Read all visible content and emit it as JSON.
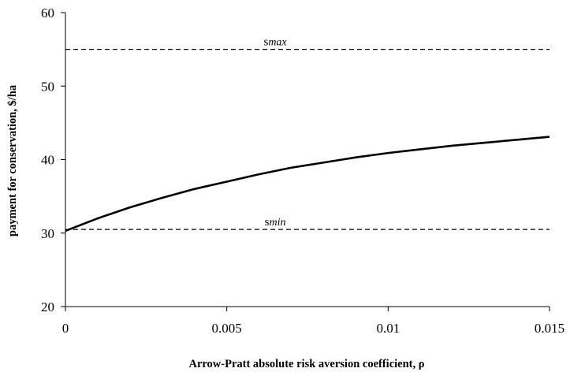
{
  "chart_data": {
    "type": "line",
    "title": "",
    "xlabel": "Arrow-Pratt absolute risk aversion coefficient, ρ",
    "ylabel": "payment for conservation, $/ha",
    "xlim": [
      0,
      0.015
    ],
    "ylim": [
      20,
      60
    ],
    "xticks": [
      0,
      0.005,
      0.01,
      0.015
    ],
    "xtick_labels": [
      "0",
      "0.005",
      "0.01",
      "0.015"
    ],
    "yticks": [
      20,
      30,
      40,
      50,
      60
    ],
    "ytick_labels": [
      "20",
      "30",
      "40",
      "50",
      "60"
    ],
    "grid": false,
    "legend": "none",
    "series": [
      {
        "x": [
          0,
          0.001,
          0.002,
          0.003,
          0.004,
          0.005,
          0.006,
          0.007,
          0.008,
          0.009,
          0.01,
          0.011,
          0.012,
          0.013,
          0.014,
          0.015
        ],
        "values": [
          30.3,
          32.0,
          33.5,
          34.8,
          36.0,
          37.0,
          38.0,
          38.9,
          39.6,
          40.3,
          40.9,
          41.4,
          41.9,
          42.3,
          42.7,
          43.1
        ],
        "color": "#000000",
        "style": "solid"
      }
    ],
    "reference_lines": [
      {
        "y": 55,
        "label_main": "s",
        "label_sub": "max",
        "style": "dashed",
        "label_x": 0.0065
      },
      {
        "y": 30.5,
        "label_main": "s",
        "label_sub": "min",
        "style": "dashed",
        "label_x": 0.0065
      }
    ]
  }
}
